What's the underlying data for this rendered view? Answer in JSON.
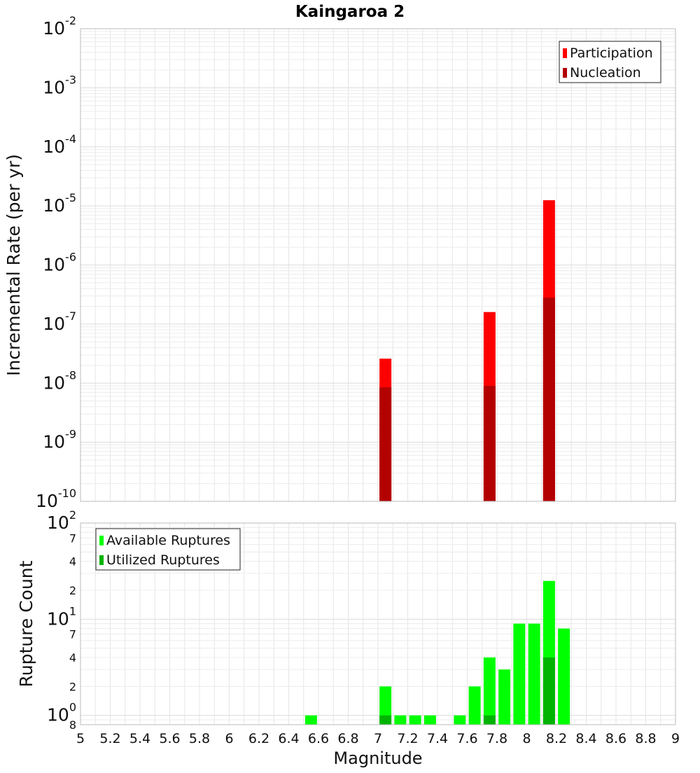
{
  "colors": {
    "participation": "#ff0000",
    "nucleation": "#b30000",
    "available": "#00ff00",
    "utilized": "#00b300",
    "grid": "#e6e6e6",
    "frame": "#bbbbbb"
  },
  "chart_data": [
    {
      "type": "bar",
      "title": "Kaingaroa 2",
      "xlabel": "",
      "ylabel": "Incremental Rate (per yr)",
      "yscale": "log",
      "ylim": [
        1e-10,
        0.01
      ],
      "xlim": [
        5,
        9
      ],
      "bar_width": 0.1,
      "grid": true,
      "legend_position": "top-right",
      "y_tick_labels": [
        {
          "value": 1e-10,
          "base": "10",
          "exp": "-10"
        },
        {
          "value": 1e-09,
          "base": "10",
          "exp": "-9"
        },
        {
          "value": 1e-08,
          "base": "10",
          "exp": "-8"
        },
        {
          "value": 1e-07,
          "base": "10",
          "exp": "-7"
        },
        {
          "value": 1e-06,
          "base": "10",
          "exp": "-6"
        },
        {
          "value": 1e-05,
          "base": "10",
          "exp": "-5"
        },
        {
          "value": 0.0001,
          "base": "10",
          "exp": "-4"
        },
        {
          "value": 0.001,
          "base": "10",
          "exp": "-3"
        },
        {
          "value": 0.01,
          "base": "10",
          "exp": "-2"
        }
      ],
      "series": [
        {
          "name": "Participation",
          "color": "#ff0000",
          "x": [
            7.05,
            7.75,
            8.15
          ],
          "values": [
            2.6e-08,
            1.6e-07,
            1.25e-05
          ]
        },
        {
          "name": "Nucleation",
          "color": "#b30000",
          "x": [
            7.05,
            7.75,
            8.15
          ],
          "values": [
            8.5e-09,
            9e-09,
            2.8e-07
          ]
        }
      ]
    },
    {
      "type": "bar",
      "title": "",
      "xlabel": "Magnitude",
      "ylabel": "Rupture Count",
      "yscale": "log",
      "ylim": [
        0.8,
        100
      ],
      "xlim": [
        5,
        9
      ],
      "bar_width": 0.1,
      "grid": true,
      "legend_position": "top-left",
      "x_tick_labels": [
        "5",
        "5.2",
        "5.4",
        "5.6",
        "5.8",
        "6",
        "6.2",
        "6.4",
        "6.6",
        "6.8",
        "7",
        "7.2",
        "7.4",
        "7.6",
        "7.8",
        "8",
        "8.2",
        "8.4",
        "8.6",
        "8.8",
        "9"
      ],
      "y_tick_labels": [
        {
          "value": 0.8,
          "base": "8",
          "exp": "",
          "kind": "minor"
        },
        {
          "value": 1,
          "base": "10",
          "exp": "0",
          "kind": "major"
        },
        {
          "value": 2,
          "base": "2",
          "exp": "",
          "kind": "minor"
        },
        {
          "value": 4,
          "base": "4",
          "exp": "",
          "kind": "minor"
        },
        {
          "value": 7,
          "base": "7",
          "exp": "",
          "kind": "minor"
        },
        {
          "value": 10,
          "base": "10",
          "exp": "1",
          "kind": "major"
        },
        {
          "value": 20,
          "base": "2",
          "exp": "",
          "kind": "minor"
        },
        {
          "value": 40,
          "base": "4",
          "exp": "",
          "kind": "minor"
        },
        {
          "value": 70,
          "base": "7",
          "exp": "",
          "kind": "minor"
        },
        {
          "value": 100,
          "base": "10",
          "exp": "2",
          "kind": "major"
        }
      ],
      "series": [
        {
          "name": "Available Ruptures",
          "color": "#00ff00",
          "x": [
            6.55,
            7.05,
            7.15,
            7.25,
            7.35,
            7.55,
            7.65,
            7.75,
            7.85,
            7.95,
            8.05,
            8.15,
            8.25
          ],
          "values": [
            1,
            2,
            1,
            1,
            1,
            1,
            2,
            4,
            3,
            9,
            9,
            25,
            8
          ]
        },
        {
          "name": "Utilized Ruptures",
          "color": "#00b300",
          "x": [
            7.05,
            7.75,
            8.15
          ],
          "values": [
            1,
            1,
            4
          ]
        }
      ]
    }
  ]
}
